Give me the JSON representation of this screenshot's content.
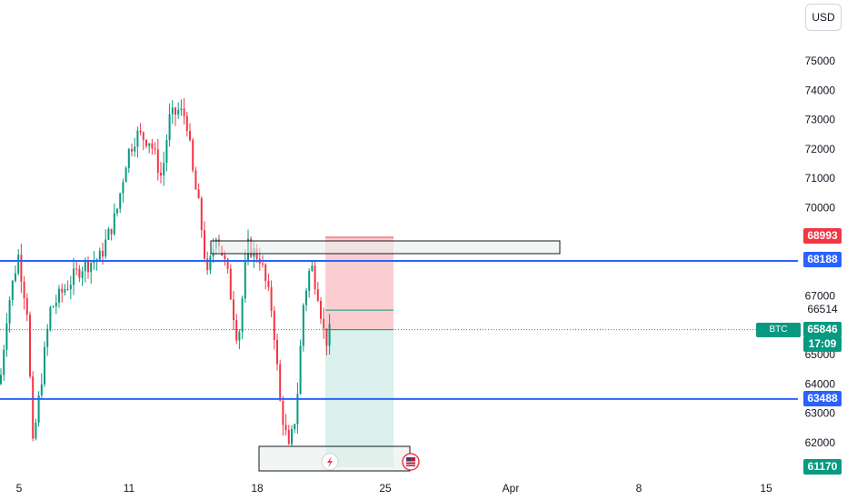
{
  "currency": "USD",
  "chart_data": {
    "type": "candlestick",
    "y_axis": {
      "min": 61000,
      "max": 75500,
      "ticks": [
        62000,
        63000,
        64000,
        65000,
        67000,
        69000,
        70000,
        71000,
        72000,
        73000,
        74000,
        75000
      ],
      "tick_labels": [
        "62000",
        "63000",
        "64000",
        "65000",
        "67000",
        "69000",
        "70000",
        "71000",
        "72000",
        "73000",
        "74000",
        "75000"
      ]
    },
    "x_axis": {
      "ticks": [
        "5",
        "11",
        "18",
        "25",
        "Apr",
        "8",
        "15"
      ]
    },
    "horizontal_lines": [
      {
        "value": 68188,
        "label": "68188",
        "color": "#2962ff"
      },
      {
        "value": 63488,
        "label": "63488",
        "color": "#2962ff"
      }
    ],
    "price_labels": [
      {
        "value": 68993,
        "label": "68993",
        "color": "#f23645"
      },
      {
        "value": 66514,
        "label": "66514",
        "color": "none"
      },
      {
        "value": 65846,
        "label": "65846",
        "color": "#089981"
      },
      {
        "value": 61170,
        "label": "61170",
        "color": "#089981"
      }
    ],
    "countdown": "17:09",
    "symbol_label": "BTC",
    "position": {
      "entry": 65846,
      "stop": 68993,
      "target": 61170
    },
    "zones": [
      {
        "name": "supply-zone",
        "top": 69000,
        "bottom": 68650
      },
      {
        "name": "demand-zone",
        "top": 61900,
        "bottom": 61100
      }
    ],
    "last_price": 65846
  }
}
